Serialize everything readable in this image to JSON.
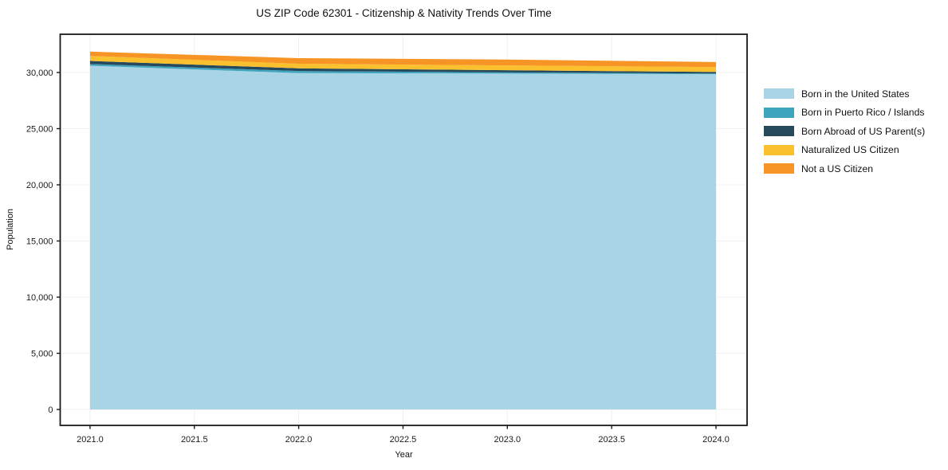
{
  "chart_data": {
    "type": "area",
    "stacked": true,
    "title": "US ZIP Code 62301 - Citizenship & Nativity Trends Over Time",
    "xlabel": "Year",
    "ylabel": "Population",
    "x": [
      2021,
      2022,
      2023,
      2024
    ],
    "series": [
      {
        "name": "Born in the United States",
        "color": "#a8d4e6",
        "values": [
          30600,
          29950,
          29900,
          29850
        ]
      },
      {
        "name": "Born in Puerto Rico / Islands",
        "color": "#3fa5bf",
        "values": [
          150,
          180,
          110,
          60
        ]
      },
      {
        "name": "Born Abroad of US Parent(s)",
        "color": "#26495c",
        "values": [
          280,
          240,
          190,
          140
        ]
      },
      {
        "name": "Naturalized US Citizen",
        "color": "#fbc02d",
        "values": [
          440,
          410,
          430,
          430
        ]
      },
      {
        "name": "Not a US Citizen",
        "color": "#f79426",
        "values": [
          390,
          500,
          520,
          450
        ]
      }
    ],
    "xlim": [
      2020.857,
      2024.149
    ],
    "ylim": [
      -1418,
      33404
    ],
    "xticks": {
      "values": [
        2021.0,
        2021.5,
        2022.0,
        2022.5,
        2023.0,
        2023.5,
        2024.0
      ],
      "labels": [
        "2021.0",
        "2021.5",
        "2022.0",
        "2022.5",
        "2023.0",
        "2023.5",
        "2024.0"
      ]
    },
    "yticks": {
      "values": [
        0,
        5000,
        10000,
        15000,
        20000,
        25000,
        30000
      ],
      "labels": [
        "0",
        "5,000",
        "10,000",
        "15,000",
        "20,000",
        "25,000",
        "30,000"
      ]
    },
    "grid": true,
    "legend_position": "right-outside",
    "colors": {
      "grid": "#f0f0f0",
      "frame": "#1a1a1a",
      "tick_text": "#1a1a1a"
    }
  }
}
